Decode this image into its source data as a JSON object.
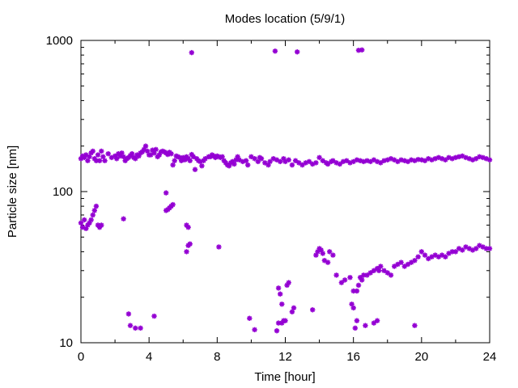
{
  "chart_data": {
    "type": "scatter",
    "title": "Modes location (5/9/1)",
    "xlabel": "Time [hour]",
    "ylabel": "Particle size [nm]",
    "xlim": [
      0,
      24
    ],
    "ylim": [
      10,
      1000
    ],
    "y_scale": "log",
    "x_ticks": [
      0,
      4,
      8,
      12,
      16,
      20,
      24
    ],
    "y_ticks": [
      10,
      100,
      1000
    ],
    "grid": false,
    "legend": "none",
    "marker_color": "#9400d3",
    "series": [
      {
        "points": [
          [
            0.0,
            165
          ],
          [
            0.1,
            172
          ],
          [
            0.2,
            168
          ],
          [
            0.3,
            175
          ],
          [
            0.4,
            160
          ],
          [
            0.5,
            170
          ],
          [
            0.6,
            180
          ],
          [
            0.7,
            185
          ],
          [
            0.8,
            165
          ],
          [
            0.9,
            160
          ],
          [
            1.0,
            175
          ],
          [
            1.1,
            160
          ],
          [
            1.2,
            185
          ],
          [
            1.3,
            170
          ],
          [
            1.4,
            160
          ],
          [
            1.6,
            178
          ],
          [
            1.8,
            168
          ],
          [
            2.0,
            172
          ],
          [
            2.1,
            165
          ],
          [
            2.2,
            178
          ],
          [
            2.3,
            172
          ],
          [
            2.4,
            180
          ],
          [
            2.5,
            170
          ],
          [
            2.6,
            160
          ],
          [
            2.7,
            165
          ],
          [
            2.8,
            168
          ],
          [
            2.9,
            173
          ],
          [
            3.0,
            178
          ],
          [
            3.1,
            168
          ],
          [
            3.2,
            165
          ],
          [
            3.3,
            175
          ],
          [
            3.4,
            172
          ],
          [
            3.5,
            180
          ],
          [
            3.6,
            183
          ],
          [
            3.7,
            190
          ],
          [
            3.8,
            200
          ],
          [
            3.9,
            185
          ],
          [
            4.0,
            175
          ],
          [
            4.1,
            175
          ],
          [
            4.2,
            188
          ],
          [
            4.3,
            180
          ],
          [
            4.4,
            190
          ],
          [
            4.5,
            170
          ],
          [
            4.6,
            175
          ],
          [
            4.7,
            183
          ],
          [
            4.8,
            185
          ],
          [
            4.9,
            183
          ],
          [
            5.0,
            180
          ],
          [
            5.1,
            176
          ],
          [
            5.2,
            182
          ],
          [
            5.3,
            178
          ],
          [
            5.4,
            150
          ],
          [
            5.5,
            160
          ],
          [
            5.6,
            172
          ],
          [
            5.7,
            170
          ],
          [
            5.8,
            168
          ],
          [
            5.9,
            160
          ],
          [
            6.0,
            168
          ],
          [
            6.1,
            162
          ],
          [
            6.2,
            170
          ],
          [
            6.3,
            165
          ],
          [
            6.4,
            160
          ],
          [
            6.5,
            176
          ],
          [
            6.6,
            170
          ],
          [
            6.7,
            140
          ],
          [
            6.8,
            165
          ],
          [
            6.9,
            160
          ],
          [
            7.0,
            158
          ],
          [
            7.1,
            148
          ],
          [
            7.2,
            160
          ],
          [
            7.3,
            165
          ],
          [
            7.5,
            170
          ],
          [
            7.6,
            170
          ],
          [
            7.7,
            175
          ],
          [
            7.8,
            172
          ],
          [
            7.9,
            168
          ],
          [
            8.0,
            172
          ],
          [
            8.1,
            170
          ],
          [
            8.2,
            168
          ],
          [
            8.3,
            170
          ],
          [
            8.4,
            160
          ],
          [
            8.5,
            155
          ],
          [
            8.6,
            150
          ],
          [
            8.7,
            148
          ],
          [
            8.8,
            155
          ],
          [
            8.9,
            158
          ],
          [
            9.0,
            152
          ],
          [
            9.1,
            162
          ],
          [
            9.2,
            170
          ],
          [
            9.3,
            162
          ],
          [
            9.5,
            158
          ],
          [
            9.7,
            160
          ],
          [
            9.8,
            150
          ],
          [
            10.0,
            170
          ],
          [
            10.2,
            165
          ],
          [
            10.4,
            158
          ],
          [
            10.5,
            168
          ],
          [
            10.6,
            165
          ],
          [
            10.8,
            155
          ],
          [
            11.0,
            150
          ],
          [
            11.1,
            158
          ],
          [
            11.3,
            165
          ],
          [
            11.5,
            162
          ],
          [
            11.7,
            158
          ],
          [
            11.9,
            165
          ],
          [
            12.0,
            158
          ],
          [
            12.2,
            162
          ],
          [
            12.4,
            150
          ],
          [
            12.6,
            160
          ],
          [
            12.8,
            155
          ],
          [
            13.0,
            150
          ],
          [
            13.2,
            155
          ],
          [
            13.4,
            158
          ],
          [
            13.6,
            152
          ],
          [
            13.8,
            155
          ],
          [
            14.0,
            168
          ],
          [
            14.2,
            160
          ],
          [
            14.4,
            155
          ],
          [
            14.5,
            152
          ],
          [
            14.7,
            158
          ],
          [
            14.8,
            160
          ],
          [
            15.0,
            155
          ],
          [
            15.2,
            152
          ],
          [
            15.4,
            158
          ],
          [
            15.6,
            160
          ],
          [
            15.8,
            155
          ],
          [
            16.0,
            158
          ],
          [
            16.2,
            162
          ],
          [
            16.4,
            160
          ],
          [
            16.6,
            158
          ],
          [
            16.8,
            160
          ],
          [
            17.0,
            158
          ],
          [
            17.2,
            162
          ],
          [
            17.4,
            158
          ],
          [
            17.6,
            155
          ],
          [
            17.8,
            160
          ],
          [
            18.0,
            162
          ],
          [
            18.2,
            165
          ],
          [
            18.4,
            162
          ],
          [
            18.6,
            158
          ],
          [
            18.8,
            162
          ],
          [
            19.0,
            160
          ],
          [
            19.2,
            158
          ],
          [
            19.4,
            162
          ],
          [
            19.6,
            160
          ],
          [
            19.8,
            163
          ],
          [
            20.0,
            162
          ],
          [
            20.2,
            160
          ],
          [
            20.4,
            165
          ],
          [
            20.6,
            162
          ],
          [
            20.8,
            165
          ],
          [
            21.0,
            168
          ],
          [
            21.2,
            165
          ],
          [
            21.4,
            162
          ],
          [
            21.6,
            168
          ],
          [
            21.8,
            165
          ],
          [
            22.0,
            168
          ],
          [
            22.2,
            170
          ],
          [
            22.4,
            172
          ],
          [
            22.6,
            168
          ],
          [
            22.8,
            165
          ],
          [
            23.0,
            162
          ],
          [
            23.2,
            165
          ],
          [
            23.4,
            170
          ],
          [
            23.6,
            168
          ],
          [
            23.8,
            165
          ],
          [
            24.0,
            162
          ],
          [
            0.0,
            62
          ],
          [
            0.1,
            58
          ],
          [
            0.2,
            65
          ],
          [
            0.3,
            57
          ],
          [
            0.4,
            60
          ],
          [
            0.5,
            62
          ],
          [
            0.6,
            65
          ],
          [
            0.7,
            70
          ],
          [
            0.8,
            75
          ],
          [
            0.9,
            80
          ],
          [
            1.0,
            60
          ],
          [
            1.1,
            58
          ],
          [
            1.2,
            60
          ],
          [
            2.5,
            66
          ],
          [
            5.0,
            75
          ],
          [
            5.1,
            76
          ],
          [
            5.2,
            78
          ],
          [
            5.3,
            80
          ],
          [
            5.4,
            82
          ],
          [
            5.0,
            98
          ],
          [
            6.2,
            40
          ],
          [
            6.3,
            44
          ],
          [
            6.4,
            45
          ],
          [
            6.2,
            60
          ],
          [
            6.3,
            58
          ],
          [
            8.1,
            43
          ],
          [
            13.8,
            38
          ],
          [
            13.9,
            40
          ],
          [
            14.0,
            42
          ],
          [
            14.1,
            41
          ],
          [
            14.2,
            39
          ],
          [
            14.3,
            35
          ],
          [
            14.5,
            34
          ],
          [
            14.6,
            40
          ],
          [
            14.8,
            38
          ],
          [
            15.0,
            28
          ],
          [
            15.3,
            25
          ],
          [
            15.5,
            26
          ],
          [
            15.8,
            27
          ],
          [
            16.0,
            22
          ],
          [
            16.2,
            22
          ],
          [
            16.3,
            24
          ],
          [
            16.4,
            27
          ],
          [
            16.5,
            26
          ],
          [
            16.6,
            28
          ],
          [
            16.8,
            28
          ],
          [
            17.0,
            29
          ],
          [
            17.2,
            30
          ],
          [
            17.4,
            31
          ],
          [
            17.5,
            30
          ],
          [
            17.6,
            32
          ],
          [
            17.8,
            30
          ],
          [
            18.0,
            29
          ],
          [
            18.2,
            28
          ],
          [
            18.4,
            32
          ],
          [
            18.6,
            33
          ],
          [
            18.8,
            34
          ],
          [
            19.0,
            32
          ],
          [
            19.2,
            33
          ],
          [
            19.4,
            34
          ],
          [
            19.6,
            35
          ],
          [
            19.8,
            37
          ],
          [
            20.0,
            40
          ],
          [
            20.2,
            38
          ],
          [
            20.4,
            36
          ],
          [
            20.6,
            37
          ],
          [
            20.8,
            38
          ],
          [
            21.0,
            37
          ],
          [
            21.2,
            38
          ],
          [
            21.4,
            37
          ],
          [
            21.6,
            39
          ],
          [
            21.8,
            40
          ],
          [
            22.0,
            40
          ],
          [
            22.2,
            42
          ],
          [
            22.4,
            41
          ],
          [
            22.6,
            43
          ],
          [
            22.8,
            42
          ],
          [
            23.0,
            41
          ],
          [
            23.2,
            42
          ],
          [
            23.4,
            44
          ],
          [
            23.6,
            43
          ],
          [
            23.8,
            42
          ],
          [
            24.0,
            42
          ],
          [
            2.8,
            15.5
          ],
          [
            2.9,
            13
          ],
          [
            3.2,
            12.5
          ],
          [
            3.5,
            12.5
          ],
          [
            4.3,
            15
          ],
          [
            9.9,
            14.5
          ],
          [
            10.2,
            12.2
          ],
          [
            11.5,
            12
          ],
          [
            11.6,
            23
          ],
          [
            11.7,
            21
          ],
          [
            11.8,
            18
          ],
          [
            11.6,
            13.5
          ],
          [
            11.8,
            13.5
          ],
          [
            11.9,
            14
          ],
          [
            12.0,
            14
          ],
          [
            12.1,
            24
          ],
          [
            12.2,
            25
          ],
          [
            12.4,
            16
          ],
          [
            12.5,
            17
          ],
          [
            13.6,
            16.5
          ],
          [
            15.9,
            18
          ],
          [
            16.0,
            17
          ],
          [
            16.1,
            12.5
          ],
          [
            16.2,
            14
          ],
          [
            16.7,
            13
          ],
          [
            17.2,
            13.5
          ],
          [
            17.4,
            14
          ],
          [
            19.6,
            13
          ],
          [
            6.5,
            830
          ],
          [
            11.4,
            850
          ],
          [
            12.7,
            840
          ],
          [
            16.3,
            860
          ],
          [
            16.5,
            865
          ]
        ]
      }
    ]
  }
}
